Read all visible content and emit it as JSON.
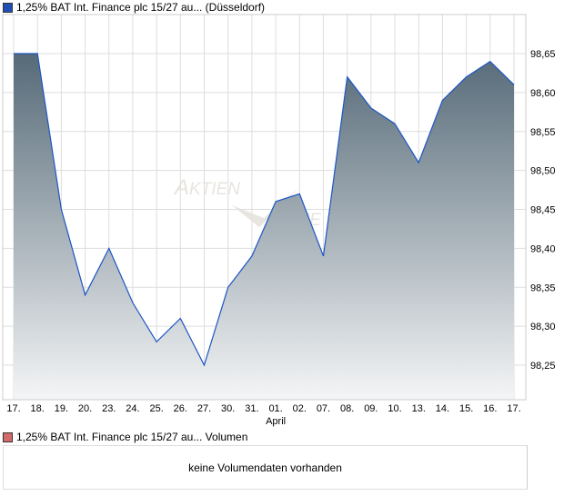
{
  "legend_price": "1,25% BAT Int. Finance plc 15/27 au... (Düsseldorf)",
  "legend_volume": "1,25% BAT Int. Finance plc 15/27 au... Volumen",
  "no_volume_text": "keine Volumendaten vorhanden",
  "watermark": "AKTIENCHECK",
  "colors": {
    "price_swatch": "#1f4fb5",
    "volume_swatch": "#d46a6a",
    "line": "#1c56c4",
    "fill_top": "#566a78",
    "fill_bottom": "#f4f5f6",
    "grid": "#dddddd"
  },
  "chart_data": {
    "type": "area",
    "title": "1,25% BAT Int. Finance plc 15/27 au... (Düsseldorf)",
    "categories": [
      "17.",
      "18.",
      "19.",
      "20.",
      "23.",
      "24.",
      "25.",
      "26.",
      "27.",
      "30.",
      "31.",
      "01.",
      "02.",
      "07.",
      "08.",
      "09.",
      "10.",
      "13.",
      "14.",
      "15.",
      "16.",
      "17."
    ],
    "month_label": "April",
    "month_label_index": 11,
    "values": [
      98.65,
      98.65,
      98.45,
      98.34,
      98.4,
      98.33,
      98.28,
      98.31,
      98.25,
      98.35,
      98.39,
      98.46,
      98.47,
      98.39,
      98.62,
      98.58,
      98.56,
      98.51,
      98.59,
      98.62,
      98.64,
      98.61
    ],
    "y_ticks": [
      "98,25",
      "98,30",
      "98,35",
      "98,40",
      "98,45",
      "98,50",
      "98,55",
      "98,60",
      "98,65"
    ],
    "y_tick_values": [
      98.25,
      98.3,
      98.35,
      98.4,
      98.45,
      98.5,
      98.55,
      98.6,
      98.65
    ],
    "ylim": [
      98.205,
      98.7
    ],
    "grid": true,
    "y_axis_side": "right"
  }
}
